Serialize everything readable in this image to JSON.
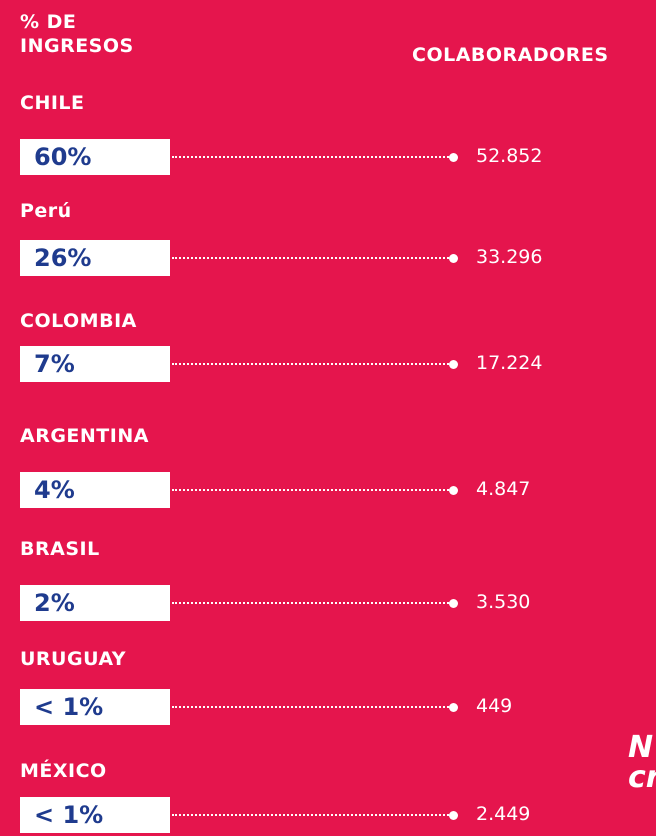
{
  "header": {
    "left": "% DE INGRESOS",
    "right": "COLABORADORES"
  },
  "rows": [
    {
      "country": "CHILE",
      "share": "60%",
      "employees": "52.852"
    },
    {
      "country": "Perú",
      "share": "26%",
      "employees": "33.296"
    },
    {
      "country": "COLOMBIA",
      "share": "7%",
      "employees": "17.224"
    },
    {
      "country": "ARGENTINA",
      "share": "4%",
      "employees": "4.847"
    },
    {
      "country": "BRASIL",
      "share": "2%",
      "employees": "3.530"
    },
    {
      "country": "URUGUAY",
      "share": "< 1%",
      "employees": "449"
    },
    {
      "country": "MÉXICO",
      "share": "< 1%",
      "employees": "2.449"
    }
  ],
  "cut_text": [
    "N",
    "cr"
  ]
}
